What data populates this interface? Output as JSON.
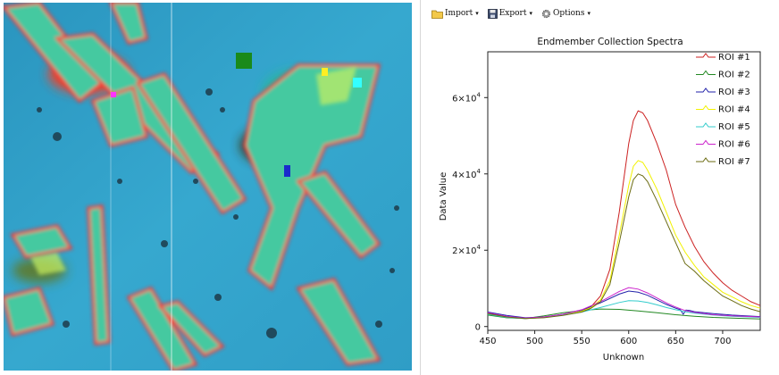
{
  "toolbar": {
    "import_label": "Import",
    "export_label": "Export",
    "options_label": "Options",
    "caret": "▾"
  },
  "image_view": {
    "roi_markers": [
      {
        "name": "magenta",
        "color": "#ff33ff"
      },
      {
        "name": "green",
        "color": "#1a8a1a"
      },
      {
        "name": "yellow",
        "color": "#ffee22"
      },
      {
        "name": "cyan",
        "color": "#33ffff"
      },
      {
        "name": "blue",
        "color": "#1a2acc"
      }
    ]
  },
  "chart_data": {
    "type": "line",
    "title": "Endmember Collection Spectra",
    "xlabel": "Unknown",
    "ylabel": "Data Value",
    "xlim": [
      450,
      740
    ],
    "ylim": [
      -1000,
      72000
    ],
    "xticks": [
      450,
      500,
      550,
      600,
      650,
      700
    ],
    "yticks": [
      {
        "value": 0,
        "label": "0",
        "exp": ""
      },
      {
        "value": 20000,
        "label": "2×10",
        "exp": "4"
      },
      {
        "value": 40000,
        "label": "4×10",
        "exp": "4"
      },
      {
        "value": 60000,
        "label": "6×10",
        "exp": "4"
      }
    ],
    "legend_position": "top-right",
    "series": [
      {
        "name": "ROI #1",
        "color": "#cc2222",
        "x": [
          450,
          470,
          490,
          510,
          530,
          550,
          560,
          570,
          580,
          590,
          600,
          605,
          610,
          615,
          620,
          630,
          640,
          650,
          660,
          670,
          680,
          690,
          700,
          710,
          720,
          730,
          740
        ],
        "y": [
          3500,
          2600,
          2100,
          2400,
          3000,
          4000,
          5200,
          8000,
          15000,
          30000,
          48000,
          54000,
          56500,
          56000,
          54000,
          48000,
          41000,
          32000,
          26000,
          21000,
          17000,
          14000,
          11500,
          9500,
          8000,
          6500,
          5500
        ]
      },
      {
        "name": "ROI #2",
        "color": "#228822",
        "x": [
          450,
          470,
          490,
          510,
          530,
          550,
          570,
          590,
          610,
          630,
          650,
          670,
          690,
          710,
          740
        ],
        "y": [
          3000,
          2300,
          2100,
          2800,
          3600,
          4200,
          4600,
          4500,
          4100,
          3600,
          3100,
          2700,
          2400,
          2200,
          2000
        ]
      },
      {
        "name": "ROI #3",
        "color": "#2222aa",
        "x": [
          450,
          470,
          490,
          510,
          530,
          550,
          570,
          590,
          600,
          610,
          620,
          630,
          640,
          650,
          655,
          658,
          661,
          665,
          670,
          690,
          710,
          740
        ],
        "y": [
          3800,
          2900,
          2300,
          2500,
          3200,
          4300,
          6200,
          8500,
          9300,
          9000,
          8200,
          7000,
          5800,
          4800,
          4400,
          3200,
          4300,
          4200,
          3900,
          3400,
          3000,
          2600
        ]
      },
      {
        "name": "ROI #4",
        "color": "#f2f200",
        "x": [
          450,
          470,
          490,
          510,
          530,
          550,
          560,
          570,
          580,
          590,
          600,
          605,
          610,
          615,
          620,
          630,
          640,
          650,
          660,
          670,
          680,
          690,
          700,
          710,
          720,
          730,
          740
        ],
        "y": [
          3300,
          2500,
          2100,
          2400,
          3000,
          4000,
          5000,
          7000,
          12000,
          24000,
          37000,
          42000,
          43500,
          43000,
          41000,
          36000,
          30000,
          24000,
          19500,
          16000,
          13000,
          11000,
          9000,
          7800,
          6500,
          5500,
          4800
        ]
      },
      {
        "name": "ROI #5",
        "color": "#33cccc",
        "x": [
          450,
          470,
          490,
          510,
          530,
          550,
          570,
          590,
          600,
          610,
          620,
          630,
          640,
          650,
          660,
          670,
          690,
          710,
          740
        ],
        "y": [
          3200,
          2400,
          2100,
          2400,
          3000,
          3800,
          5000,
          6300,
          6800,
          6700,
          6300,
          5700,
          5000,
          4400,
          3900,
          3500,
          3000,
          2700,
          2400
        ]
      },
      {
        "name": "ROI #6",
        "color": "#cc22cc",
        "x": [
          450,
          470,
          490,
          510,
          530,
          550,
          570,
          590,
          600,
          610,
          620,
          630,
          640,
          650,
          660,
          670,
          690,
          710,
          740
        ],
        "y": [
          3600,
          2700,
          2200,
          2500,
          3200,
          4400,
          6500,
          9200,
          10200,
          9800,
          8800,
          7500,
          6200,
          5100,
          4200,
          3700,
          3100,
          2800,
          2500
        ]
      },
      {
        "name": "ROI #7",
        "color": "#6b6b12",
        "x": [
          450,
          470,
          490,
          510,
          530,
          550,
          560,
          570,
          580,
          590,
          600,
          605,
          610,
          615,
          620,
          630,
          640,
          650,
          660,
          670,
          680,
          690,
          700,
          710,
          720,
          730,
          740
        ],
        "y": [
          3400,
          2500,
          2100,
          2300,
          2900,
          3800,
          4800,
          6500,
          11000,
          22000,
          34000,
          38500,
          40000,
          39500,
          38000,
          33000,
          27500,
          22000,
          16500,
          14500,
          12000,
          10000,
          8000,
          6800,
          5500,
          4600,
          3900
        ]
      }
    ]
  }
}
